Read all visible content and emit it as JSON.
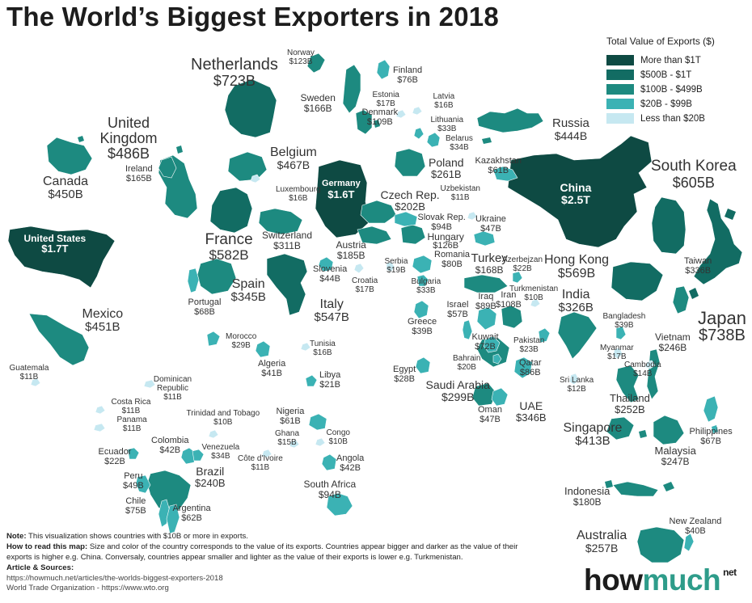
{
  "title": "The World’s Biggest Exporters in 2018",
  "legend": {
    "title": "Total Value of Exports ($)",
    "items": [
      {
        "label": "More than $1T",
        "color": "#0e4a43"
      },
      {
        "label": "$500B - $1T",
        "color": "#126c63"
      },
      {
        "label": "$100B - $499B",
        "color": "#1d8a80"
      },
      {
        "label": "$20B - $99B",
        "color": "#3bb2b4"
      },
      {
        "label": "Less than $20B",
        "color": "#c6e8f1"
      }
    ]
  },
  "countries": [
    {
      "name": "China",
      "value": "$2.5T",
      "tier": 0
    },
    {
      "name": "United States",
      "value": "$1.7T",
      "tier": 0
    },
    {
      "name": "Germany",
      "value": "$1.6T",
      "tier": 0
    },
    {
      "name": "Japan",
      "value": "$738B",
      "tier": 1
    },
    {
      "name": "Netherlands",
      "value": "$723B",
      "tier": 1
    },
    {
      "name": "South Korea",
      "value": "$605B",
      "tier": 1
    },
    {
      "name": "France",
      "value": "$582B",
      "tier": 1
    },
    {
      "name": "Hong Kong",
      "value": "$569B",
      "tier": 1
    },
    {
      "name": "Italy",
      "value": "$547B",
      "tier": 1
    },
    {
      "name": "United Kingdom",
      "value": "$486B",
      "tier": 2
    },
    {
      "name": "Belgium",
      "value": "$467B",
      "tier": 2
    },
    {
      "name": "Mexico",
      "value": "$451B",
      "tier": 2
    },
    {
      "name": "Canada",
      "value": "$450B",
      "tier": 2
    },
    {
      "name": "Russia",
      "value": "$444B",
      "tier": 2
    },
    {
      "name": "Singapore",
      "value": "$413B",
      "tier": 2
    },
    {
      "name": "UAE",
      "value": "$346B",
      "tier": 2
    },
    {
      "name": "Spain",
      "value": "$345B",
      "tier": 2
    },
    {
      "name": "Taiwan",
      "value": "$336B",
      "tier": 2
    },
    {
      "name": "India",
      "value": "$326B",
      "tier": 2
    },
    {
      "name": "Switzerland",
      "value": "$311B",
      "tier": 2
    },
    {
      "name": "Saudi Arabia",
      "value": "$299B",
      "tier": 2
    },
    {
      "name": "Poland",
      "value": "$261B",
      "tier": 2
    },
    {
      "name": "Australia",
      "value": "$257B",
      "tier": 2
    },
    {
      "name": "Thailand",
      "value": "$252B",
      "tier": 2
    },
    {
      "name": "Malaysia",
      "value": "$247B",
      "tier": 2
    },
    {
      "name": "Vietnam",
      "value": "$246B",
      "tier": 2
    },
    {
      "name": "Brazil",
      "value": "$240B",
      "tier": 2
    },
    {
      "name": "Czech Rep.",
      "value": "$202B",
      "tier": 2
    },
    {
      "name": "Austria",
      "value": "$185B",
      "tier": 2
    },
    {
      "name": "Indonesia",
      "value": "$180B",
      "tier": 2
    },
    {
      "name": "Turkey",
      "value": "$168B",
      "tier": 2
    },
    {
      "name": "Sweden",
      "value": "$166B",
      "tier": 2
    },
    {
      "name": "Ireland",
      "value": "$165B",
      "tier": 2
    },
    {
      "name": "Hungary",
      "value": "$126B",
      "tier": 2
    },
    {
      "name": "Norway",
      "value": "$123B",
      "tier": 2
    },
    {
      "name": "Denmark",
      "value": "$109B",
      "tier": 2
    },
    {
      "name": "Iran",
      "value": "$108B",
      "tier": 2
    },
    {
      "name": "Slovak Rep.",
      "value": "$94B",
      "tier": 3
    },
    {
      "name": "South Africa",
      "value": "$94B",
      "tier": 3
    },
    {
      "name": "Iraq",
      "value": "$89B",
      "tier": 3
    },
    {
      "name": "Qatar",
      "value": "$86B",
      "tier": 3
    },
    {
      "name": "Romania",
      "value": "$80B",
      "tier": 3
    },
    {
      "name": "Finland",
      "value": "$76B",
      "tier": 3
    },
    {
      "name": "Chile",
      "value": "$75B",
      "tier": 3
    },
    {
      "name": "Kuwait",
      "value": "$72B",
      "tier": 3
    },
    {
      "name": "Portugal",
      "value": "$68B",
      "tier": 3
    },
    {
      "name": "Philippines",
      "value": "$67B",
      "tier": 3
    },
    {
      "name": "Argentina",
      "value": "$62B",
      "tier": 3
    },
    {
      "name": "Kazakhstan",
      "value": "$61B",
      "tier": 3
    },
    {
      "name": "Nigeria",
      "value": "$61B",
      "tier": 3
    },
    {
      "name": "Israel",
      "value": "$57B",
      "tier": 3
    },
    {
      "name": "Peru",
      "value": "$49B",
      "tier": 3
    },
    {
      "name": "Ukraine",
      "value": "$47B",
      "tier": 3
    },
    {
      "name": "Oman",
      "value": "$47B",
      "tier": 3
    },
    {
      "name": "Slovenia",
      "value": "$44B",
      "tier": 3
    },
    {
      "name": "Colombia",
      "value": "$42B",
      "tier": 3
    },
    {
      "name": "Angola",
      "value": "$42B",
      "tier": 3
    },
    {
      "name": "Algeria",
      "value": "$41B",
      "tier": 3
    },
    {
      "name": "New Zealand",
      "value": "$40B",
      "tier": 3
    },
    {
      "name": "Greece",
      "value": "$39B",
      "tier": 3
    },
    {
      "name": "Bangladesh",
      "value": "$39B",
      "tier": 3
    },
    {
      "name": "Belarus",
      "value": "$34B",
      "tier": 3
    },
    {
      "name": "Venezuela",
      "value": "$34B",
      "tier": 3
    },
    {
      "name": "Lithuania",
      "value": "$33B",
      "tier": 3
    },
    {
      "name": "Bulgaria",
      "value": "$33B",
      "tier": 3
    },
    {
      "name": "Morocco",
      "value": "$29B",
      "tier": 3
    },
    {
      "name": "Egypt",
      "value": "$28B",
      "tier": 3
    },
    {
      "name": "Pakistan",
      "value": "$23B",
      "tier": 3
    },
    {
      "name": "Azerbejzan",
      "value": "$22B",
      "tier": 3
    },
    {
      "name": "Ecuador",
      "value": "$22B",
      "tier": 3
    },
    {
      "name": "Libya",
      "value": "$21B",
      "tier": 3
    },
    {
      "name": "Bahrain",
      "value": "$20B",
      "tier": 3
    },
    {
      "name": "Serbia",
      "value": "$19B",
      "tier": 4
    },
    {
      "name": "Estonia",
      "value": "$17B",
      "tier": 4
    },
    {
      "name": "Croatia",
      "value": "$17B",
      "tier": 4
    },
    {
      "name": "Myanmar",
      "value": "$17B",
      "tier": 4
    },
    {
      "name": "Latvia",
      "value": "$16B",
      "tier": 4
    },
    {
      "name": "Luxembourg",
      "value": "$16B",
      "tier": 4
    },
    {
      "name": "Tunisia",
      "value": "$16B",
      "tier": 4
    },
    {
      "name": "Ghana",
      "value": "$15B",
      "tier": 4
    },
    {
      "name": "Cambodia",
      "value": "$14B",
      "tier": 4
    },
    {
      "name": "Sri Lanka",
      "value": "$12B",
      "tier": 4
    },
    {
      "name": "Uzbekistan",
      "value": "$11B",
      "tier": 4
    },
    {
      "name": "Guatemala",
      "value": "$11B",
      "tier": 4
    },
    {
      "name": "Dominican Republic",
      "value": "$11B",
      "tier": 4
    },
    {
      "name": "Costa Rica",
      "value": "$11B",
      "tier": 4
    },
    {
      "name": "Panama",
      "value": "$11B",
      "tier": 4
    },
    {
      "name": "Côte d'Ivoire",
      "value": "$11B",
      "tier": 4
    },
    {
      "name": "Turkmenistan",
      "value": "$10B",
      "tier": 4
    },
    {
      "name": "Trinidad and Tobago",
      "value": "$10B",
      "tier": 4
    },
    {
      "name": "Congo",
      "value": "$10B",
      "tier": 4
    }
  ],
  "notes": {
    "note_label": "Note:",
    "note_text": "This visualization shows countries with $10B or more in exports.",
    "howto_label": "How to read this map:",
    "howto_text": "Size and color of the country corresponds to the value of its exports. Countries appear bigger and darker as the value of their exports is higher e.g. China. Conversaly, countries appear smaller and lighter as the value of their exports is lower e.g. Turkmenistan.",
    "sources_label": "Article & Sources:",
    "source1": "https://howmuch.net/articles/the-worlds-biggest-exporters-2018",
    "source2": "World Trade Organization - https://www.wto.org"
  },
  "brand": {
    "how": "how",
    "much": "much",
    "net": "net"
  }
}
